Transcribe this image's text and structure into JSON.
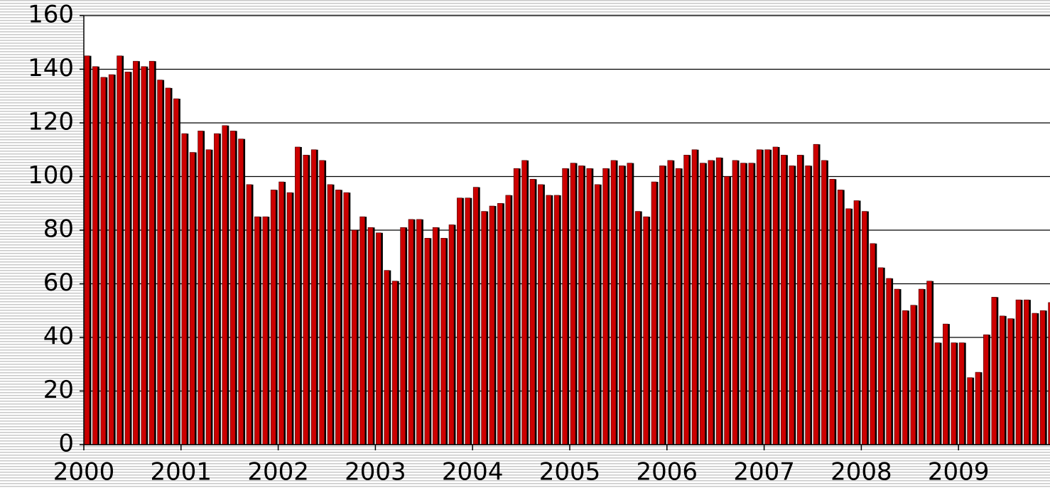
{
  "chart_data": {
    "type": "bar",
    "categories": [
      "2000",
      null,
      null,
      null,
      null,
      null,
      null,
      null,
      null,
      null,
      null,
      null,
      "2001",
      null,
      null,
      null,
      null,
      null,
      null,
      null,
      null,
      null,
      null,
      null,
      "2002",
      null,
      null,
      null,
      null,
      null,
      null,
      null,
      null,
      null,
      null,
      null,
      "2003",
      null,
      null,
      null,
      null,
      null,
      null,
      null,
      null,
      null,
      null,
      null,
      "2004",
      null,
      null,
      null,
      null,
      null,
      null,
      null,
      null,
      null,
      null,
      null,
      "2005",
      null,
      null,
      null,
      null,
      null,
      null,
      null,
      null,
      null,
      null,
      null,
      "2006",
      null,
      null,
      null,
      null,
      null,
      null,
      null,
      null,
      null,
      null,
      null,
      "2007",
      null,
      null,
      null,
      null,
      null,
      null,
      null,
      null,
      null,
      null,
      null,
      "2008",
      null,
      null,
      null,
      null,
      null,
      null,
      null,
      null,
      null,
      null,
      null,
      "2009",
      null,
      null,
      null,
      null,
      null,
      null,
      null,
      null,
      null,
      null,
      null
    ],
    "values": [
      145,
      141,
      137,
      138,
      145,
      139,
      143,
      141,
      143,
      136,
      133,
      129,
      116,
      109,
      117,
      110,
      116,
      119,
      117,
      114,
      97,
      85,
      85,
      95,
      98,
      94,
      111,
      108,
      110,
      106,
      97,
      95,
      94,
      80,
      85,
      81,
      79,
      65,
      61,
      81,
      84,
      84,
      77,
      81,
      77,
      82,
      92,
      92,
      96,
      87,
      89,
      90,
      93,
      103,
      106,
      99,
      97,
      93,
      93,
      103,
      105,
      104,
      103,
      97,
      103,
      106,
      104,
      105,
      87,
      85,
      98,
      104,
      106,
      103,
      108,
      110,
      105,
      106,
      107,
      100,
      106,
      105,
      105,
      110,
      110,
      111,
      108,
      104,
      108,
      104,
      112,
      106,
      99,
      95,
      88,
      91,
      87,
      75,
      66,
      62,
      58,
      50,
      52,
      58,
      61,
      38,
      45,
      38,
      38,
      25,
      27,
      41,
      55,
      48,
      47,
      54,
      54,
      49,
      50,
      53
    ],
    "color": "#cc0000",
    "ylim": [
      0,
      160
    ],
    "yticks": [
      0,
      20,
      40,
      60,
      80,
      100,
      120,
      140,
      160
    ],
    "grid": true
  }
}
